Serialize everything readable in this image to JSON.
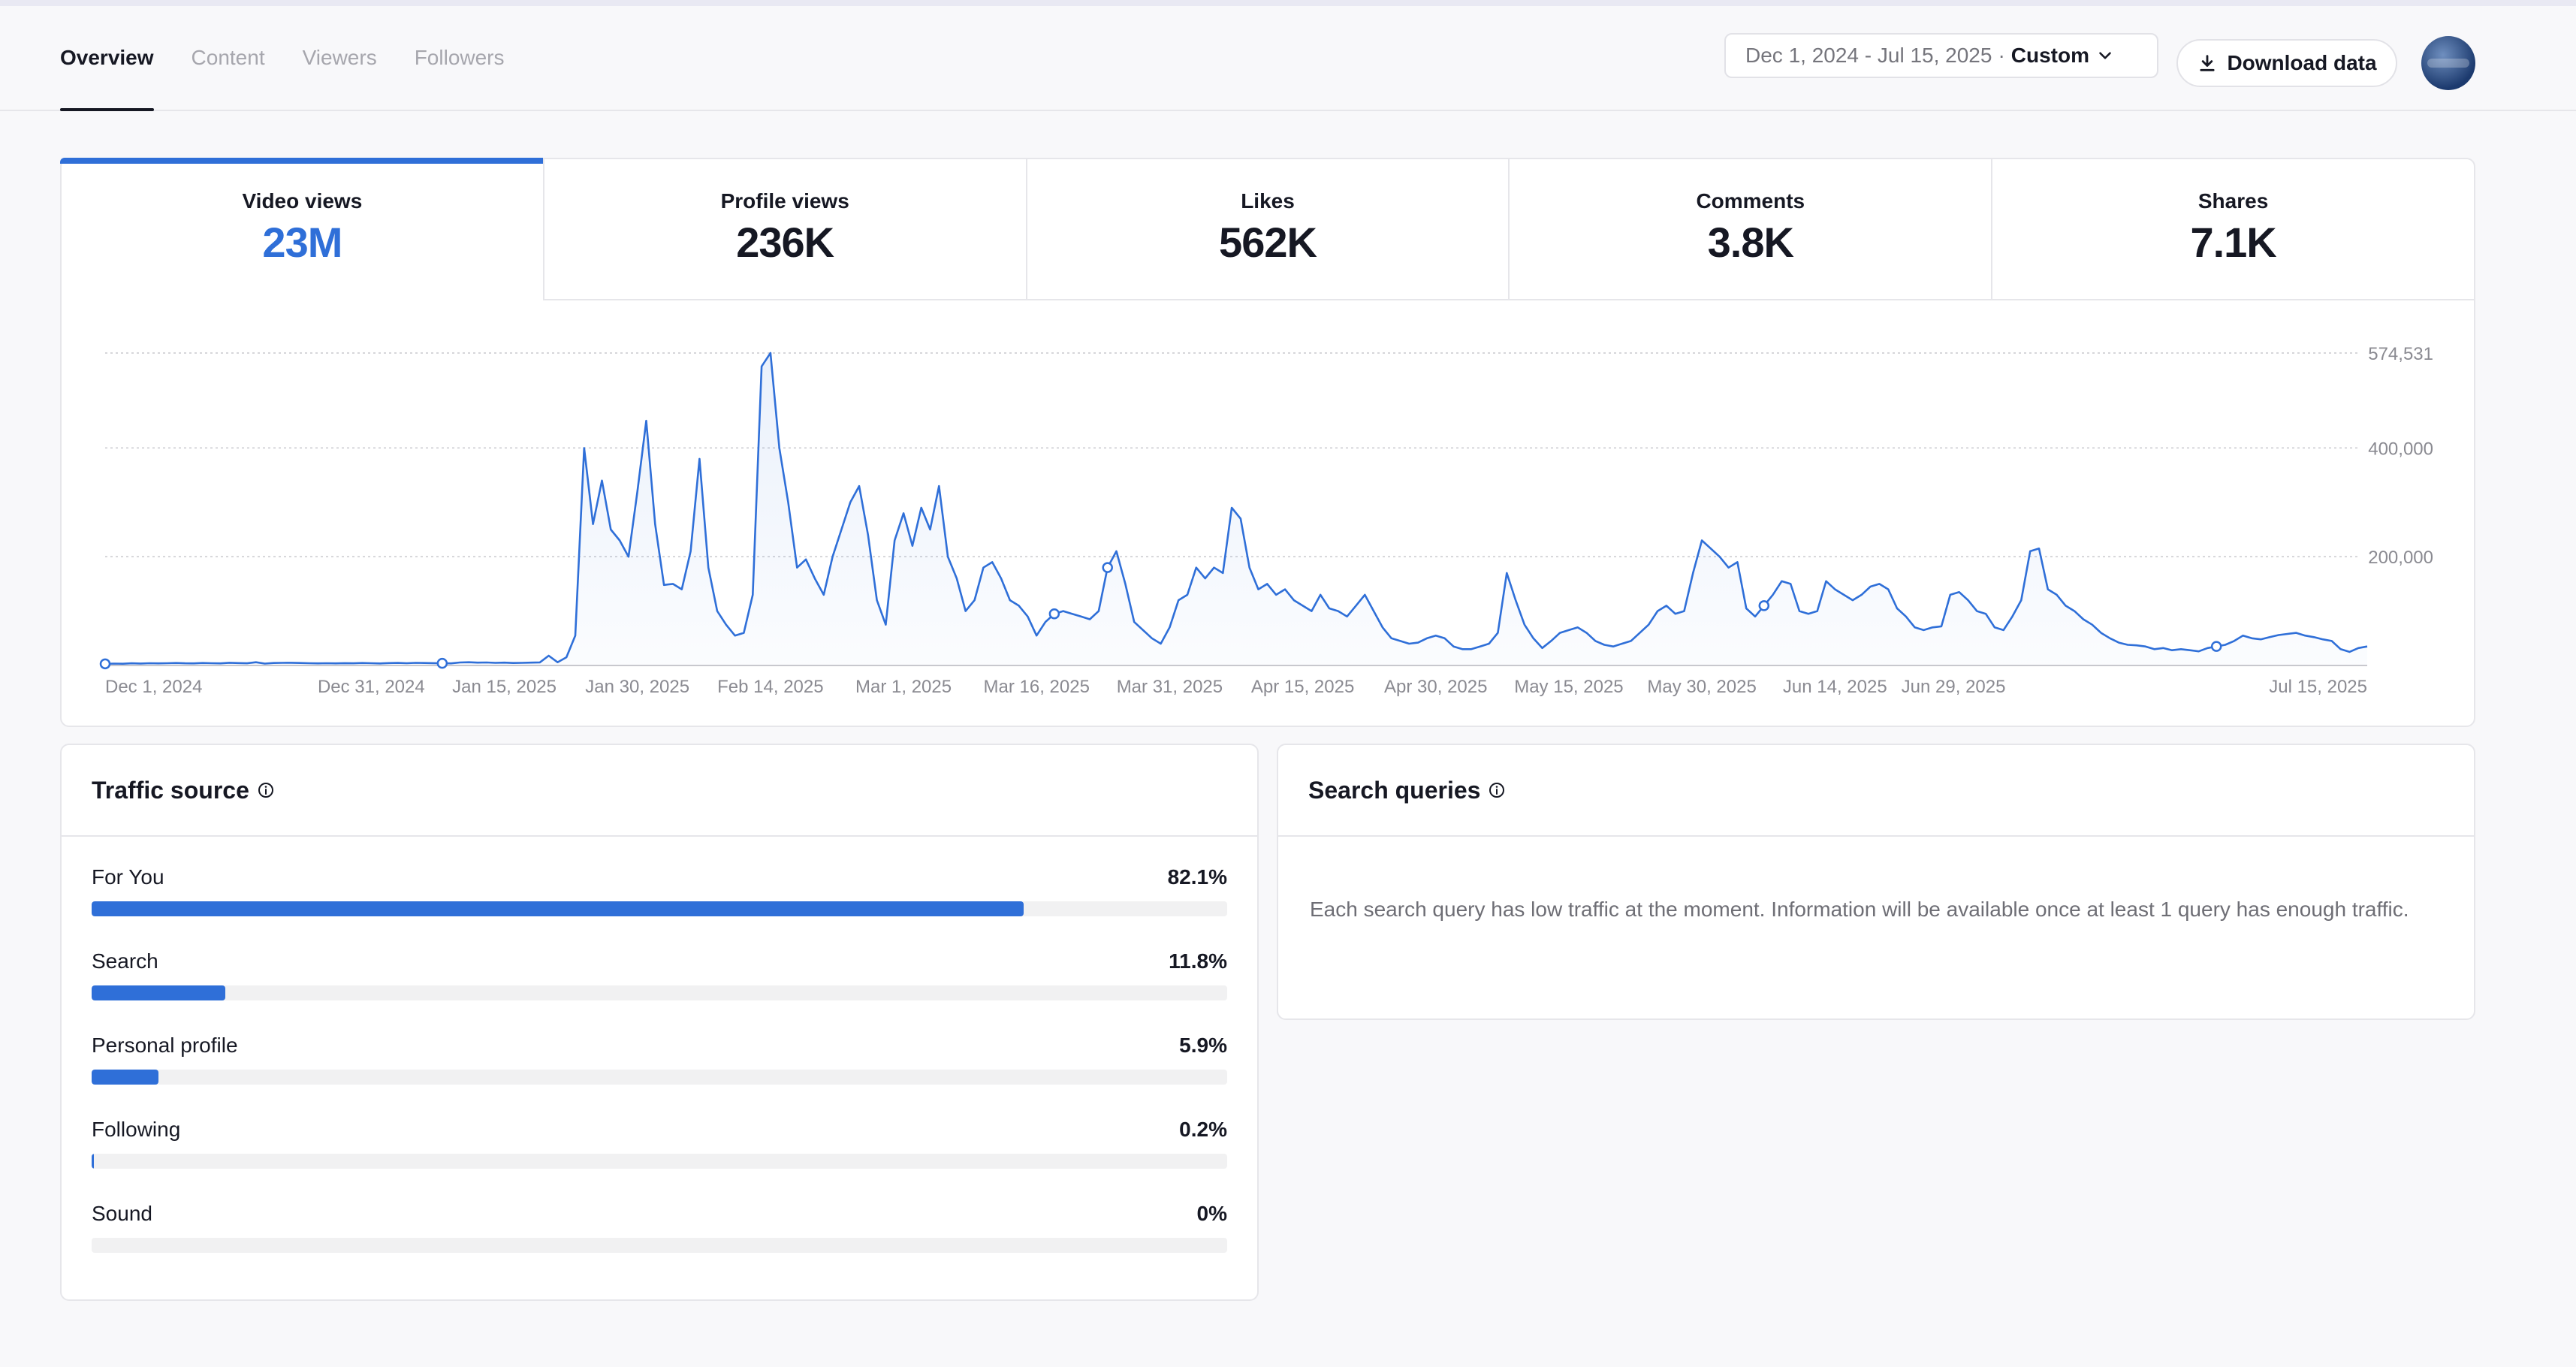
{
  "header": {
    "tabs": [
      {
        "label": "Overview",
        "active": true
      },
      {
        "label": "Content",
        "active": false
      },
      {
        "label": "Viewers",
        "active": false
      },
      {
        "label": "Followers",
        "active": false
      }
    ],
    "date_range": "Dec 1, 2024 - Jul 15, 2025",
    "date_separator": "·",
    "date_mode": "Custom",
    "download_label": "Download data"
  },
  "metrics": [
    {
      "label": "Video views",
      "value": "23M",
      "active": true
    },
    {
      "label": "Profile views",
      "value": "236K",
      "active": false
    },
    {
      "label": "Likes",
      "value": "562K",
      "active": false
    },
    {
      "label": "Comments",
      "value": "3.8K",
      "active": false
    },
    {
      "label": "Shares",
      "value": "7.1K",
      "active": false
    }
  ],
  "colors": {
    "accent": "#2f6fd8",
    "text": "#161823",
    "muted": "#75757c",
    "border": "#e6e6ea"
  },
  "chart_data": {
    "type": "area",
    "series": [
      {
        "values": [
          3000,
          3500,
          3200,
          4000,
          3600,
          4200,
          3800,
          4100,
          4500,
          4000,
          3900,
          4600,
          4200,
          3800,
          5000,
          4400,
          4000,
          6000,
          3500,
          4600,
          4800,
          5000,
          4500,
          4200,
          3900,
          4100,
          3800,
          4300,
          4000,
          4500,
          4100,
          3700,
          4400,
          4700,
          4200,
          4800,
          4500,
          4300,
          4000,
          3800,
          5500,
          6000,
          5200,
          5500,
          4800,
          5200,
          4500,
          4900,
          5300,
          5600,
          18000,
          6000,
          15000,
          55000,
          400000,
          260000,
          340000,
          250000,
          230000,
          200000,
          320000,
          450000,
          260000,
          148000,
          150000,
          140000,
          210000,
          380000,
          180000,
          100000,
          75000,
          55000,
          60000,
          130000,
          550000,
          574531,
          400000,
          300000,
          180000,
          195000,
          160000,
          130000,
          200000,
          250000,
          300000,
          330000,
          240000,
          120000,
          75000,
          230000,
          280000,
          220000,
          290000,
          250000,
          330000,
          200000,
          160000,
          100000,
          120000,
          180000,
          190000,
          160000,
          120000,
          110000,
          90000,
          55000,
          80000,
          95000,
          100000,
          95000,
          90000,
          85000,
          100000,
          180000,
          210000,
          150000,
          80000,
          65000,
          50000,
          40000,
          70000,
          120000,
          130000,
          180000,
          160000,
          180000,
          170000,
          290000,
          270000,
          180000,
          140000,
          150000,
          130000,
          140000,
          120000,
          110000,
          100000,
          130000,
          105000,
          100000,
          90000,
          110000,
          130000,
          100000,
          70000,
          50000,
          45000,
          40000,
          42000,
          50000,
          55000,
          50000,
          35000,
          30000,
          30000,
          35000,
          40000,
          60000,
          170000,
          120000,
          75000,
          50000,
          32000,
          45000,
          60000,
          65000,
          70000,
          60000,
          45000,
          38000,
          35000,
          40000,
          45000,
          60000,
          75000,
          100000,
          110000,
          95000,
          100000,
          170000,
          230000,
          215000,
          200000,
          180000,
          190000,
          105000,
          90000,
          110000,
          130000,
          155000,
          150000,
          100000,
          95000,
          100000,
          155000,
          140000,
          130000,
          120000,
          130000,
          145000,
          150000,
          140000,
          105000,
          90000,
          70000,
          65000,
          70000,
          72000,
          130000,
          135000,
          120000,
          100000,
          95000,
          70000,
          65000,
          90000,
          120000,
          210000,
          215000,
          140000,
          130000,
          110000,
          100000,
          85000,
          75000,
          60000,
          50000,
          42000,
          38000,
          37000,
          35000,
          30000,
          32000,
          28000,
          30000,
          28000,
          26000,
          32000,
          35000,
          38000,
          45000,
          55000,
          50000,
          48000,
          52000,
          56000,
          58000,
          60000,
          55000,
          52000,
          48000,
          45000,
          30000,
          25000,
          32000,
          35000
        ],
        "markers": [
          0,
          38,
          107,
          113,
          187,
          238,
          375
        ]
      }
    ],
    "xlabels": [
      "Dec 1, 2024",
      "Dec 31, 2024",
      "Jan 15, 2025",
      "Jan 30, 2025",
      "Feb 14, 2025",
      "Mar 1, 2025",
      "Mar 16, 2025",
      "Mar 31, 2025",
      "Apr 15, 2025",
      "Apr 30, 2025",
      "May 15, 2025",
      "May 30, 2025",
      "Jun 14, 2025",
      "Jun 29, 2025",
      "Jul 15, 2025"
    ],
    "yticks": [
      {
        "value": 574531,
        "label": "574,531"
      },
      {
        "value": 400000,
        "label": "400,000"
      },
      {
        "value": 200000,
        "label": "200,000"
      }
    ],
    "ylim": [
      0,
      574531
    ],
    "grid": true
  },
  "traffic": {
    "title": "Traffic source",
    "items": [
      {
        "name": "For You",
        "pct": "82.1%",
        "value": 0.821
      },
      {
        "name": "Search",
        "pct": "11.8%",
        "value": 0.118
      },
      {
        "name": "Personal profile",
        "pct": "5.9%",
        "value": 0.059
      },
      {
        "name": "Following",
        "pct": "0.2%",
        "value": 0.002
      },
      {
        "name": "Sound",
        "pct": "0%",
        "value": 0
      }
    ]
  },
  "search": {
    "title": "Search queries",
    "message": "Each search query has low traffic at the moment. Information will be available once at least 1 query has enough traffic."
  }
}
